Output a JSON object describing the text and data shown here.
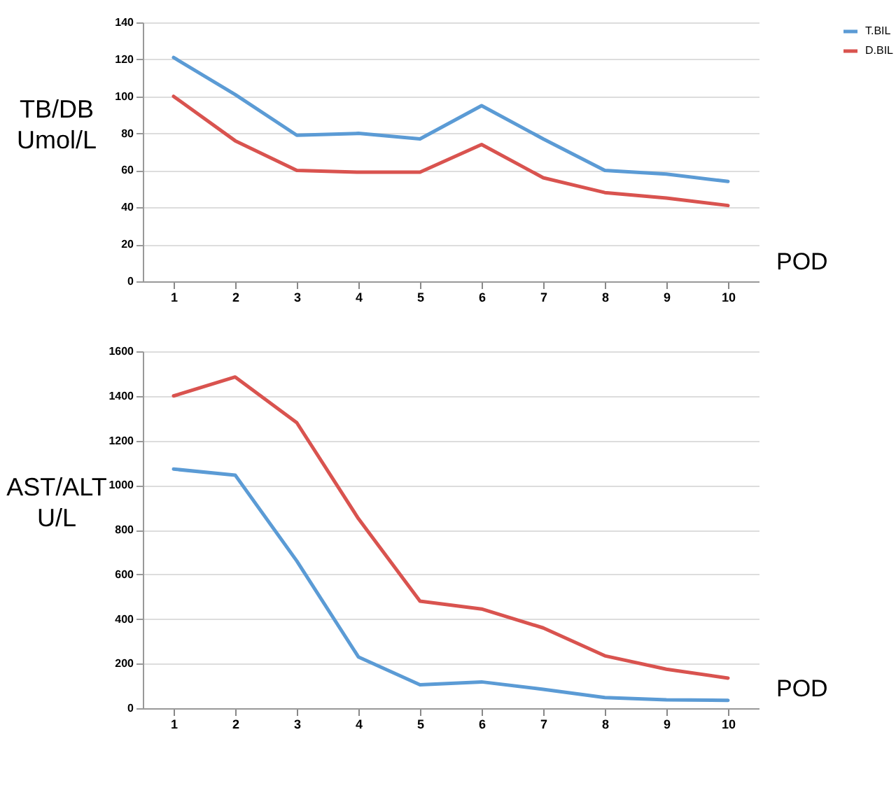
{
  "chart_data": [
    {
      "type": "line",
      "ylabel": "TB/DB Umol/L",
      "xlabel": "POD",
      "categories": [
        "1",
        "2",
        "3",
        "4",
        "5",
        "6",
        "7",
        "8",
        "9",
        "10"
      ],
      "ylim": [
        0,
        140
      ],
      "yticks": [
        0,
        20,
        40,
        60,
        80,
        100,
        120,
        140
      ],
      "grid": "y",
      "legend": "right",
      "marker": "none",
      "line_style": "solid",
      "series": [
        {
          "name": "T.BIL",
          "color": "#5b9bd5",
          "values": [
            121,
            101,
            79,
            80,
            77,
            95,
            77,
            60,
            58,
            54
          ]
        },
        {
          "name": "D.BIL",
          "color": "#d9534f",
          "values": [
            100,
            76,
            60,
            59,
            59,
            74,
            56,
            48,
            45,
            41
          ]
        }
      ]
    },
    {
      "type": "line",
      "ylabel": "AST/ALT U/L",
      "xlabel": "POD",
      "categories": [
        "1",
        "2",
        "3",
        "4",
        "5",
        "6",
        "7",
        "8",
        "9",
        "10"
      ],
      "ylim": [
        0,
        1600
      ],
      "yticks": [
        0,
        200,
        400,
        600,
        800,
        1000,
        1200,
        1400,
        1600
      ],
      "grid": "y",
      "marker": "none",
      "line_style": "solid",
      "series": [
        {
          "color": "#5b9bd5",
          "values": [
            1072,
            1045,
            660,
            230,
            105,
            118,
            85,
            48,
            38,
            35
          ]
        },
        {
          "color": "#d9534f",
          "values": [
            1400,
            1485,
            1280,
            850,
            480,
            445,
            360,
            235,
            175,
            135
          ]
        }
      ]
    }
  ]
}
